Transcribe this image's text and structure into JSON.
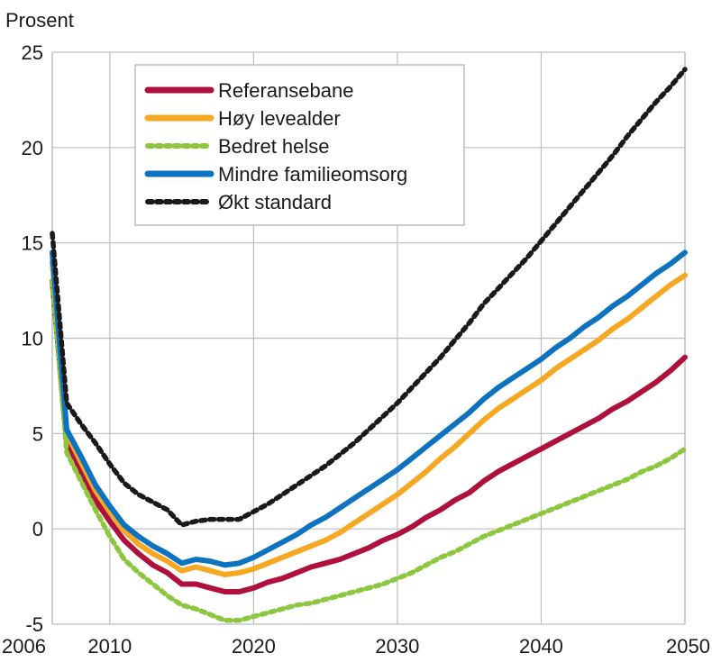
{
  "chart_data": {
    "type": "line",
    "ylabel": "Prosent",
    "xlim": [
      2006,
      2050
    ],
    "ylim": [
      -5,
      25
    ],
    "x_ticks": [
      2006,
      2010,
      2020,
      2030,
      2040,
      2050
    ],
    "y_ticks": [
      -5,
      0,
      5,
      10,
      15,
      20,
      25
    ],
    "grid": true,
    "legend_position": "top-left",
    "series": [
      {
        "name": "Referansebane",
        "color": "#b0103c",
        "style": "solid",
        "x": [
          2006,
          2007,
          2008,
          2009,
          2010,
          2011,
          2012,
          2013,
          2014,
          2015,
          2016,
          2017,
          2018,
          2019,
          2020,
          2021,
          2022,
          2023,
          2024,
          2025,
          2026,
          2027,
          2028,
          2029,
          2030,
          2031,
          2032,
          2033,
          2034,
          2035,
          2036,
          2037,
          2038,
          2039,
          2040,
          2041,
          2042,
          2043,
          2044,
          2045,
          2046,
          2047,
          2048,
          2049,
          2050
        ],
        "values": [
          13.0,
          4.6,
          3.0,
          1.5,
          0.4,
          -0.6,
          -1.3,
          -1.9,
          -2.3,
          -2.9,
          -2.9,
          -3.1,
          -3.3,
          -3.3,
          -3.1,
          -2.8,
          -2.6,
          -2.3,
          -2.0,
          -1.8,
          -1.6,
          -1.3,
          -1.0,
          -0.6,
          -0.3,
          0.1,
          0.6,
          1.0,
          1.5,
          1.9,
          2.5,
          3.0,
          3.4,
          3.8,
          4.2,
          4.6,
          5.0,
          5.4,
          5.8,
          6.3,
          6.7,
          7.2,
          7.7,
          8.3,
          9.0
        ]
      },
      {
        "name": "Høy levealder",
        "color": "#f7a823",
        "style": "solid",
        "x": [
          2006,
          2007,
          2008,
          2009,
          2010,
          2011,
          2012,
          2013,
          2014,
          2015,
          2016,
          2017,
          2018,
          2019,
          2020,
          2021,
          2022,
          2023,
          2024,
          2025,
          2026,
          2027,
          2028,
          2029,
          2030,
          2031,
          2032,
          2033,
          2034,
          2035,
          2036,
          2037,
          2038,
          2039,
          2040,
          2041,
          2042,
          2043,
          2044,
          2045,
          2046,
          2047,
          2048,
          2049,
          2050
        ],
        "values": [
          14.0,
          5.0,
          3.5,
          2.0,
          0.9,
          -0.1,
          -0.8,
          -1.3,
          -1.7,
          -2.2,
          -2.0,
          -2.2,
          -2.4,
          -2.3,
          -2.1,
          -1.8,
          -1.5,
          -1.2,
          -0.9,
          -0.6,
          -0.2,
          0.3,
          0.8,
          1.3,
          1.8,
          2.4,
          3.0,
          3.7,
          4.3,
          5.0,
          5.7,
          6.3,
          6.8,
          7.3,
          7.8,
          8.4,
          8.9,
          9.4,
          9.9,
          10.5,
          11.0,
          11.6,
          12.2,
          12.8,
          13.3
        ]
      },
      {
        "name": "Bedret helse",
        "color": "#8dc63f",
        "style": "dotted",
        "x": [
          2006,
          2007,
          2008,
          2009,
          2010,
          2011,
          2012,
          2013,
          2014,
          2015,
          2016,
          2017,
          2018,
          2019,
          2020,
          2021,
          2022,
          2023,
          2024,
          2025,
          2026,
          2027,
          2028,
          2029,
          2030,
          2031,
          2032,
          2033,
          2034,
          2035,
          2036,
          2037,
          2038,
          2039,
          2040,
          2041,
          2042,
          2043,
          2044,
          2045,
          2046,
          2047,
          2048,
          2049,
          2050
        ],
        "values": [
          13.0,
          4.0,
          2.5,
          1.0,
          -0.4,
          -1.6,
          -2.3,
          -2.9,
          -3.5,
          -4.0,
          -4.2,
          -4.5,
          -4.8,
          -4.8,
          -4.6,
          -4.4,
          -4.2,
          -4.0,
          -3.9,
          -3.7,
          -3.5,
          -3.3,
          -3.1,
          -2.9,
          -2.6,
          -2.3,
          -1.9,
          -1.5,
          -1.2,
          -0.8,
          -0.4,
          -0.1,
          0.2,
          0.5,
          0.8,
          1.1,
          1.4,
          1.7,
          2.0,
          2.3,
          2.6,
          3.0,
          3.3,
          3.7,
          4.2
        ]
      },
      {
        "name": "Mindre familieomsorg",
        "color": "#0d73c0",
        "style": "solid",
        "x": [
          2006,
          2007,
          2008,
          2009,
          2010,
          2011,
          2012,
          2013,
          2014,
          2015,
          2016,
          2017,
          2018,
          2019,
          2020,
          2021,
          2022,
          2023,
          2024,
          2025,
          2026,
          2027,
          2028,
          2029,
          2030,
          2031,
          2032,
          2033,
          2034,
          2035,
          2036,
          2037,
          2038,
          2039,
          2040,
          2041,
          2042,
          2043,
          2044,
          2045,
          2046,
          2047,
          2048,
          2049,
          2050
        ],
        "values": [
          14.5,
          5.2,
          3.8,
          2.3,
          1.2,
          0.2,
          -0.4,
          -0.9,
          -1.3,
          -1.8,
          -1.6,
          -1.7,
          -1.9,
          -1.8,
          -1.5,
          -1.1,
          -0.7,
          -0.3,
          0.2,
          0.6,
          1.1,
          1.6,
          2.1,
          2.6,
          3.1,
          3.7,
          4.3,
          4.9,
          5.5,
          6.1,
          6.8,
          7.4,
          7.9,
          8.4,
          8.9,
          9.5,
          10.0,
          10.6,
          11.1,
          11.7,
          12.2,
          12.8,
          13.4,
          13.9,
          14.5
        ]
      },
      {
        "name": "Økt standard",
        "color": "#1a1a1a",
        "style": "dotted",
        "x": [
          2006,
          2007,
          2008,
          2009,
          2010,
          2011,
          2012,
          2013,
          2014,
          2015,
          2016,
          2017,
          2018,
          2019,
          2020,
          2021,
          2022,
          2023,
          2024,
          2025,
          2026,
          2027,
          2028,
          2029,
          2030,
          2031,
          2032,
          2033,
          2034,
          2035,
          2036,
          2037,
          2038,
          2039,
          2040,
          2041,
          2042,
          2043,
          2044,
          2045,
          2046,
          2047,
          2048,
          2049,
          2050
        ],
        "values": [
          15.5,
          6.6,
          5.5,
          4.5,
          3.4,
          2.4,
          1.8,
          1.4,
          1.0,
          0.2,
          0.4,
          0.5,
          0.5,
          0.5,
          0.9,
          1.3,
          1.8,
          2.3,
          2.8,
          3.3,
          3.9,
          4.5,
          5.2,
          5.9,
          6.6,
          7.4,
          8.2,
          9.0,
          9.9,
          10.8,
          11.8,
          12.6,
          13.4,
          14.2,
          15.1,
          16.0,
          16.9,
          17.8,
          18.7,
          19.6,
          20.6,
          21.5,
          22.4,
          23.2,
          24.1
        ]
      }
    ]
  }
}
